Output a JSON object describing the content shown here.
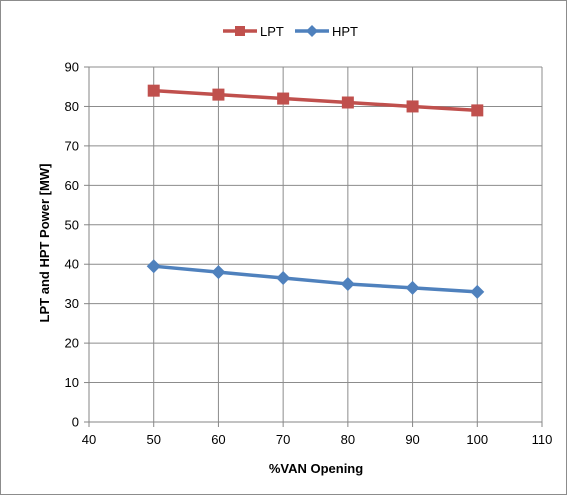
{
  "chart_data": {
    "type": "line",
    "title": "",
    "xlabel": "%VAN Opening",
    "ylabel": "LPT and HPT Power [MW]",
    "xlim": [
      40,
      110
    ],
    "ylim": [
      0,
      90
    ],
    "x_ticks": [
      40,
      50,
      60,
      70,
      80,
      90,
      100,
      110
    ],
    "y_ticks": [
      0,
      10,
      20,
      30,
      40,
      50,
      60,
      70,
      80,
      90
    ],
    "grid": true,
    "legend_position": "top",
    "x": [
      50,
      60,
      70,
      80,
      90,
      100
    ],
    "series": [
      {
        "name": "LPT",
        "values": [
          84,
          83,
          82,
          81,
          80,
          79
        ],
        "color": "#c0504d",
        "marker": "square"
      },
      {
        "name": "HPT",
        "values": [
          39.5,
          38,
          36.5,
          35,
          34,
          33
        ],
        "color": "#4f81bd",
        "marker": "diamond"
      }
    ]
  }
}
